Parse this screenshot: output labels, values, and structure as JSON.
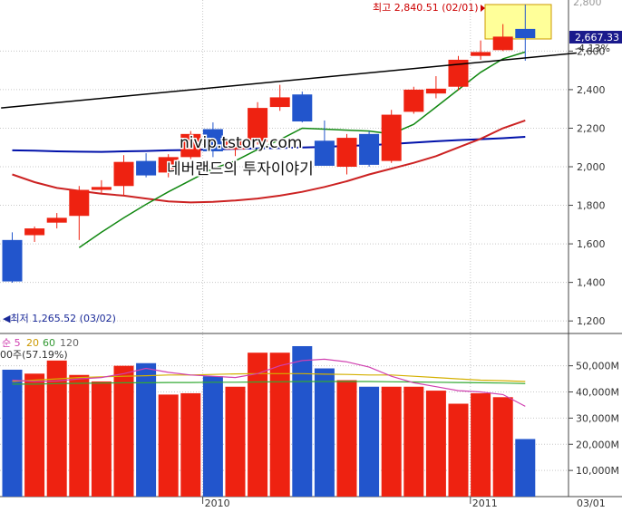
{
  "chart_data": {
    "type": "candlestick",
    "annotations": {
      "high_label": "최고 2,840.51 (02/01)",
      "low_label": "◀최저 1,265.52 (03/02)",
      "current_price": "2,667.33",
      "current_change": "-4.13%",
      "top_tick_partial": "2,800",
      "watermark_1": "nivip.tstory.com",
      "watermark_2": "네버랜드의 투자이야기"
    },
    "price_ticks": [
      "2,600",
      "2,400",
      "2,200",
      "2,000",
      "1,800",
      "1,600",
      "1,400",
      "1,200"
    ],
    "price_tick_values": [
      2600,
      2400,
      2200,
      2000,
      1800,
      1600,
      1400,
      1200
    ],
    "price_range": [
      1135,
      2865
    ],
    "candles": [
      {
        "o": 1620,
        "h": 1660,
        "l": 1398,
        "c": 1405
      },
      {
        "o": 1645,
        "h": 1690,
        "l": 1610,
        "c": 1680
      },
      {
        "o": 1710,
        "h": 1760,
        "l": 1680,
        "c": 1735
      },
      {
        "o": 1745,
        "h": 1900,
        "l": 1620,
        "c": 1880
      },
      {
        "o": 1880,
        "h": 1930,
        "l": 1860,
        "c": 1895
      },
      {
        "o": 1900,
        "h": 2060,
        "l": 1850,
        "c": 2025
      },
      {
        "o": 2030,
        "h": 2070,
        "l": 1945,
        "c": 1955
      },
      {
        "o": 1970,
        "h": 2065,
        "l": 1945,
        "c": 2050
      },
      {
        "o": 2050,
        "h": 2185,
        "l": 2040,
        "c": 2170
      },
      {
        "o": 2195,
        "h": 2230,
        "l": 2050,
        "c": 2080
      },
      {
        "o": 2090,
        "h": 2150,
        "l": 2055,
        "c": 2140
      },
      {
        "o": 2130,
        "h": 2335,
        "l": 2115,
        "c": 2305
      },
      {
        "o": 2310,
        "h": 2425,
        "l": 2290,
        "c": 2360
      },
      {
        "o": 2375,
        "h": 2390,
        "l": 2230,
        "c": 2235
      },
      {
        "o": 2135,
        "h": 2240,
        "l": 2010,
        "c": 2005
      },
      {
        "o": 2000,
        "h": 2170,
        "l": 1960,
        "c": 2150
      },
      {
        "o": 2170,
        "h": 2185,
        "l": 2000,
        "c": 2010
      },
      {
        "o": 2030,
        "h": 2295,
        "l": 2020,
        "c": 2270
      },
      {
        "o": 2285,
        "h": 2415,
        "l": 2275,
        "c": 2400
      },
      {
        "o": 2380,
        "h": 2470,
        "l": 2355,
        "c": 2405
      },
      {
        "o": 2415,
        "h": 2575,
        "l": 2395,
        "c": 2555
      },
      {
        "o": 2575,
        "h": 2655,
        "l": 2555,
        "c": 2595
      },
      {
        "o": 2605,
        "h": 2740,
        "l": 2600,
        "c": 2675
      },
      {
        "o": 2715,
        "h": 2840.51,
        "l": 2550,
        "c": 2667.33
      }
    ],
    "ma_green": [
      null,
      null,
      null,
      1580,
      1660,
      1735,
      1805,
      1870,
      1930,
      1990,
      2030,
      2090,
      2140,
      2200,
      2195,
      2190,
      2185,
      2170,
      2220,
      2310,
      2400,
      2490,
      2560,
      2595
    ],
    "ma_red": [
      1960,
      1920,
      1890,
      1875,
      1860,
      1850,
      1835,
      1820,
      1815,
      1818,
      1825,
      1835,
      1850,
      1870,
      1895,
      1925,
      1960,
      1990,
      2020,
      2055,
      2100,
      2145,
      2200,
      2240
    ],
    "ma_blue": [
      2085,
      2083,
      2080,
      2078,
      2077,
      2080,
      2082,
      2085,
      2087,
      2090,
      2093,
      2095,
      2097,
      2100,
      2103,
      2108,
      2112,
      2118,
      2125,
      2132,
      2138,
      2143,
      2148,
      2155
    ],
    "trend_line": {
      "from": [
        -0.5,
        2305
      ],
      "to": [
        25.3,
        2590
      ]
    },
    "volume": {
      "legend": [
        "순 5",
        "20",
        "60",
        "120"
      ],
      "legend_colors": [
        "#d040b0",
        "#cc9900",
        "#339933",
        "#666666"
      ],
      "sub_legend": "00주(57.19%)",
      "ticks": [
        "50,000M",
        "40,000M",
        "30,000M",
        "20,000M",
        "10,000M"
      ],
      "tick_values": [
        50000,
        40000,
        30000,
        20000,
        10000
      ],
      "range": [
        0,
        62000
      ],
      "values": [
        48500,
        47000,
        52000,
        46500,
        44000,
        50000,
        51000,
        39000,
        39500,
        46000,
        42000,
        55000,
        55000,
        57500,
        49000,
        44500,
        42000,
        42000,
        42000,
        40500,
        35500,
        39500,
        38000,
        22000
      ],
      "ma_pink": [
        44500,
        44000,
        44200,
        45000,
        45500,
        47000,
        49000,
        47500,
        46500,
        46000,
        45500,
        47000,
        50000,
        52000,
        52500,
        51500,
        49500,
        46000,
        43500,
        42000,
        40500,
        40000,
        39000,
        34500
      ],
      "ma_orange": [
        44000,
        44500,
        45000,
        45500,
        45800,
        46000,
        46200,
        46500,
        46500,
        46700,
        46900,
        47000,
        47000,
        47000,
        46800,
        46700,
        46500,
        46500,
        46000,
        45500,
        45000,
        44500,
        44300,
        44000
      ],
      "ma_green": [
        43000,
        43000,
        43200,
        43300,
        43400,
        43500,
        43500,
        43600,
        43600,
        43700,
        43700,
        43800,
        43900,
        44000,
        44000,
        44000,
        44000,
        43900,
        43800,
        43700,
        43600,
        43500,
        43400,
        43200
      ]
    },
    "date_labels": [
      {
        "text": "2010",
        "index": 9
      },
      {
        "text": "2011",
        "index": 21
      }
    ],
    "current_date": "03/01",
    "colors": {
      "up": "#ee2211",
      "down": "#2255cc",
      "ma_green": "#118811",
      "ma_red": "#cc2222",
      "ma_blue": "#0011aa",
      "trend": "#000000",
      "highlight": "#ffff99"
    }
  }
}
